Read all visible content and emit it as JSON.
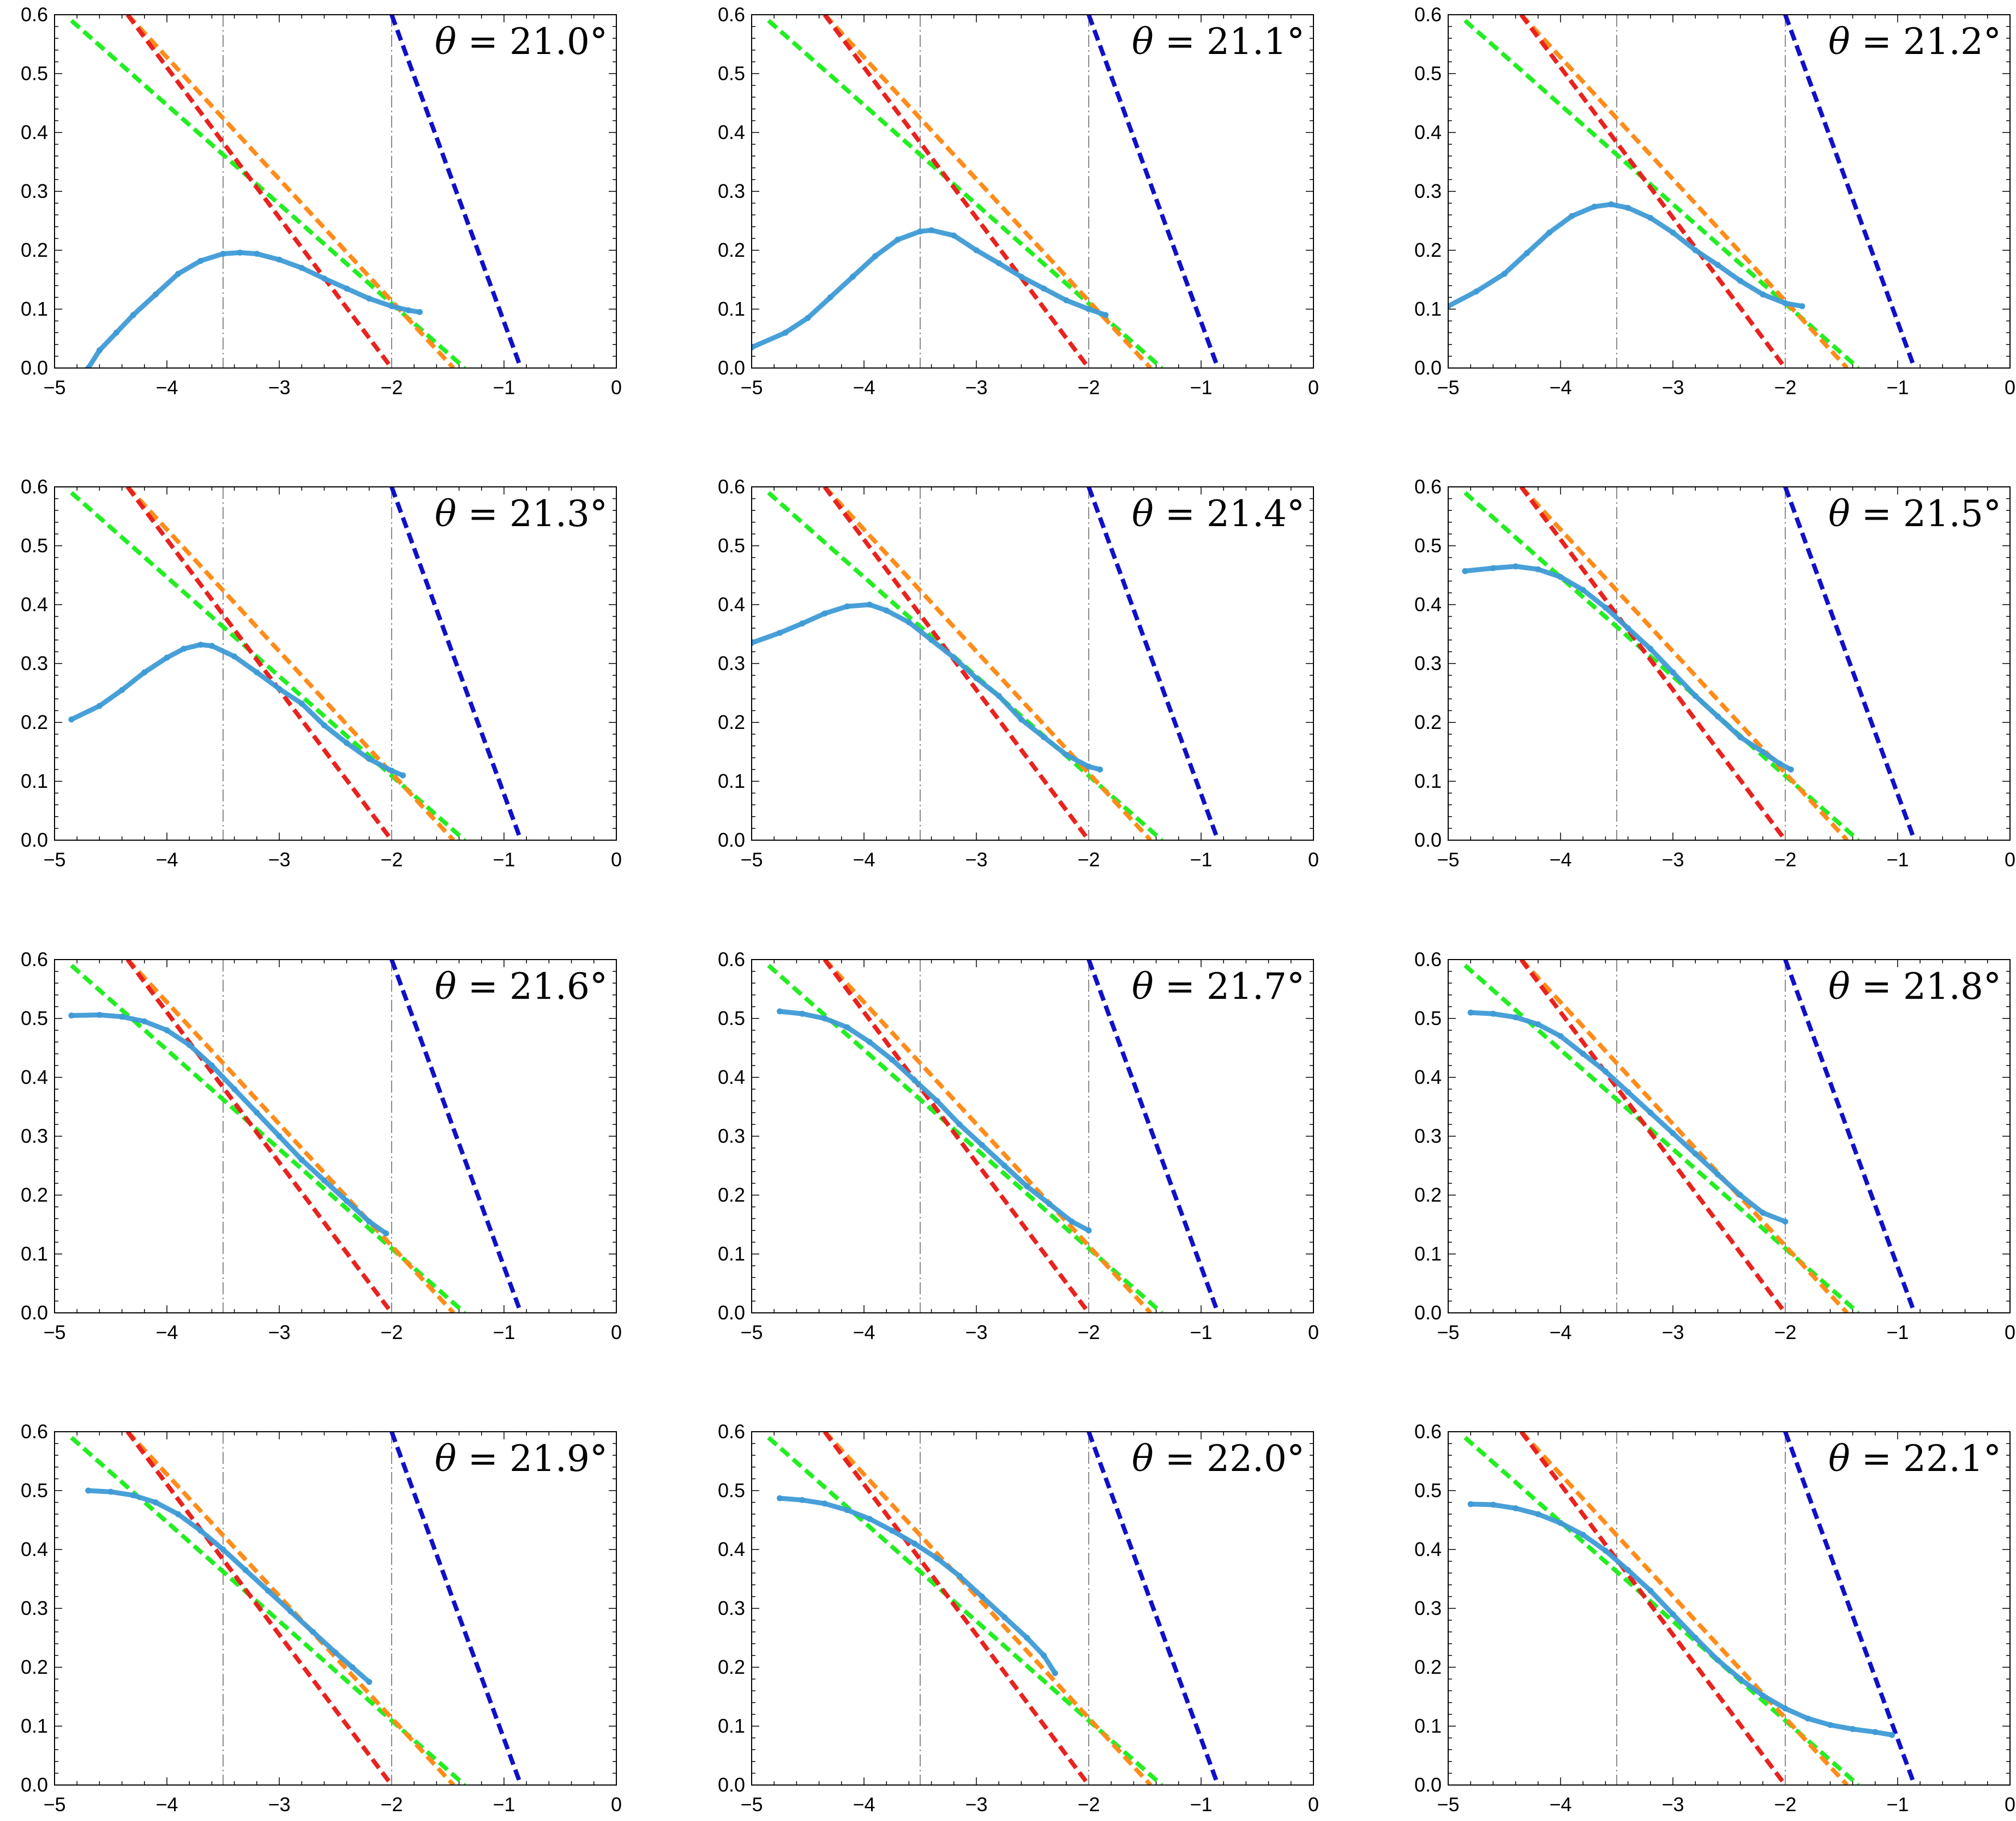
{
  "chart_data": {
    "type": "scatter",
    "layout": "4x3 grid of panels",
    "xlim": [
      -5,
      0
    ],
    "ylim": [
      0,
      0.6
    ],
    "x_ticks": [
      -5,
      -4,
      -3,
      -2,
      -1,
      0
    ],
    "y_ticks": [
      0.0,
      0.1,
      0.2,
      0.3,
      0.4,
      0.5,
      0.6
    ],
    "x_tick_labels": [
      "−5",
      "−4",
      "−3",
      "−2",
      "−1",
      "0"
    ],
    "y_tick_labels": [
      "0.0",
      "0.1",
      "0.2",
      "0.3",
      "0.4",
      "0.5",
      "0.6"
    ],
    "vertical_reference_lines": [
      -3.5,
      -2.0
    ],
    "reference_lines": [
      {
        "name": "green",
        "color": "#22ee22",
        "style": "dashed",
        "points": [
          [
            -4.85,
            0.59
          ],
          [
            -1.35,
            0.0
          ]
        ]
      },
      {
        "name": "orange",
        "color": "#ff8c1a",
        "style": "dashed",
        "points": [
          [
            -4.35,
            0.6
          ],
          [
            -1.45,
            0.0
          ]
        ]
      },
      {
        "name": "red",
        "color": "#e8231f",
        "style": "dashed",
        "points": [
          [
            -4.35,
            0.6
          ],
          [
            -2.0,
            0.0
          ]
        ]
      },
      {
        "name": "blue",
        "color": "#1010c8",
        "style": "dashed",
        "points": [
          [
            -2.0,
            0.6
          ],
          [
            -0.85,
            0.0
          ]
        ]
      }
    ],
    "data_color": "#3f9bd6",
    "panels": [
      {
        "title_symbol": "θ",
        "title_value": "= 21.0°",
        "data": [
          [
            -4.7,
            0.0
          ],
          [
            -4.6,
            0.03
          ],
          [
            -4.45,
            0.06
          ],
          [
            -4.3,
            0.09
          ],
          [
            -4.1,
            0.125
          ],
          [
            -3.9,
            0.16
          ],
          [
            -3.7,
            0.182
          ],
          [
            -3.5,
            0.194
          ],
          [
            -3.35,
            0.196
          ],
          [
            -3.2,
            0.194
          ],
          [
            -3.0,
            0.184
          ],
          [
            -2.8,
            0.17
          ],
          [
            -2.6,
            0.152
          ],
          [
            -2.4,
            0.135
          ],
          [
            -2.2,
            0.118
          ],
          [
            -2.0,
            0.105
          ],
          [
            -1.85,
            0.098
          ],
          [
            -1.75,
            0.095
          ]
        ]
      },
      {
        "title_symbol": "θ",
        "title_value": "= 21.1°",
        "data": [
          [
            -5.0,
            0.035
          ],
          [
            -4.7,
            0.06
          ],
          [
            -4.5,
            0.085
          ],
          [
            -4.3,
            0.12
          ],
          [
            -4.1,
            0.155
          ],
          [
            -3.9,
            0.19
          ],
          [
            -3.7,
            0.218
          ],
          [
            -3.5,
            0.232
          ],
          [
            -3.4,
            0.234
          ],
          [
            -3.2,
            0.225
          ],
          [
            -3.0,
            0.2
          ],
          [
            -2.8,
            0.178
          ],
          [
            -2.6,
            0.155
          ],
          [
            -2.4,
            0.135
          ],
          [
            -2.2,
            0.115
          ],
          [
            -2.0,
            0.1
          ],
          [
            -1.85,
            0.09
          ]
        ]
      },
      {
        "title_symbol": "θ",
        "title_value": "= 21.2°",
        "data": [
          [
            -5.0,
            0.105
          ],
          [
            -4.75,
            0.13
          ],
          [
            -4.5,
            0.16
          ],
          [
            -4.3,
            0.195
          ],
          [
            -4.1,
            0.23
          ],
          [
            -3.9,
            0.258
          ],
          [
            -3.7,
            0.274
          ],
          [
            -3.55,
            0.278
          ],
          [
            -3.4,
            0.272
          ],
          [
            -3.2,
            0.255
          ],
          [
            -3.0,
            0.23
          ],
          [
            -2.8,
            0.2
          ],
          [
            -2.6,
            0.175
          ],
          [
            -2.4,
            0.148
          ],
          [
            -2.2,
            0.125
          ],
          [
            -2.0,
            0.11
          ],
          [
            -1.85,
            0.105
          ]
        ]
      },
      {
        "title_symbol": "θ",
        "title_value": "= 21.3°",
        "data": [
          [
            -4.85,
            0.205
          ],
          [
            -4.6,
            0.228
          ],
          [
            -4.4,
            0.255
          ],
          [
            -4.2,
            0.285
          ],
          [
            -4.0,
            0.31
          ],
          [
            -3.85,
            0.325
          ],
          [
            -3.7,
            0.332
          ],
          [
            -3.6,
            0.33
          ],
          [
            -3.4,
            0.312
          ],
          [
            -3.2,
            0.285
          ],
          [
            -3.0,
            0.257
          ],
          [
            -2.8,
            0.232
          ],
          [
            -2.6,
            0.195
          ],
          [
            -2.4,
            0.165
          ],
          [
            -2.2,
            0.138
          ],
          [
            -2.0,
            0.118
          ],
          [
            -1.9,
            0.11
          ]
        ]
      },
      {
        "title_symbol": "θ",
        "title_value": "= 21.4°",
        "data": [
          [
            -5.0,
            0.335
          ],
          [
            -4.75,
            0.352
          ],
          [
            -4.55,
            0.368
          ],
          [
            -4.35,
            0.385
          ],
          [
            -4.15,
            0.397
          ],
          [
            -3.95,
            0.4
          ],
          [
            -3.8,
            0.39
          ],
          [
            -3.6,
            0.37
          ],
          [
            -3.4,
            0.34
          ],
          [
            -3.2,
            0.31
          ],
          [
            -3.0,
            0.275
          ],
          [
            -2.8,
            0.245
          ],
          [
            -2.6,
            0.205
          ],
          [
            -2.4,
            0.175
          ],
          [
            -2.2,
            0.145
          ],
          [
            -2.0,
            0.125
          ],
          [
            -1.9,
            0.12
          ]
        ]
      },
      {
        "title_symbol": "θ",
        "title_value": "= 21.5°",
        "data": [
          [
            -4.85,
            0.457
          ],
          [
            -4.6,
            0.462
          ],
          [
            -4.4,
            0.465
          ],
          [
            -4.2,
            0.46
          ],
          [
            -4.0,
            0.447
          ],
          [
            -3.8,
            0.425
          ],
          [
            -3.6,
            0.395
          ],
          [
            -3.4,
            0.36
          ],
          [
            -3.2,
            0.325
          ],
          [
            -3.0,
            0.285
          ],
          [
            -2.8,
            0.245
          ],
          [
            -2.6,
            0.21
          ],
          [
            -2.4,
            0.175
          ],
          [
            -2.2,
            0.15
          ],
          [
            -2.05,
            0.13
          ],
          [
            -1.95,
            0.12
          ]
        ]
      },
      {
        "title_symbol": "θ",
        "title_value": "= 21.6°",
        "data": [
          [
            -4.85,
            0.505
          ],
          [
            -4.6,
            0.506
          ],
          [
            -4.4,
            0.503
          ],
          [
            -4.2,
            0.495
          ],
          [
            -4.0,
            0.48
          ],
          [
            -3.8,
            0.455
          ],
          [
            -3.6,
            0.42
          ],
          [
            -3.4,
            0.38
          ],
          [
            -3.2,
            0.34
          ],
          [
            -3.0,
            0.3
          ],
          [
            -2.8,
            0.26
          ],
          [
            -2.6,
            0.225
          ],
          [
            -2.4,
            0.19
          ],
          [
            -2.2,
            0.155
          ],
          [
            -2.05,
            0.135
          ]
        ]
      },
      {
        "title_symbol": "θ",
        "title_value": "= 21.7°",
        "data": [
          [
            -4.75,
            0.512
          ],
          [
            -4.55,
            0.508
          ],
          [
            -4.35,
            0.5
          ],
          [
            -4.15,
            0.485
          ],
          [
            -3.95,
            0.46
          ],
          [
            -3.75,
            0.43
          ],
          [
            -3.55,
            0.395
          ],
          [
            -3.35,
            0.36
          ],
          [
            -3.15,
            0.32
          ],
          [
            -2.95,
            0.285
          ],
          [
            -2.75,
            0.25
          ],
          [
            -2.55,
            0.215
          ],
          [
            -2.35,
            0.185
          ],
          [
            -2.15,
            0.155
          ],
          [
            -2.0,
            0.14
          ]
        ]
      },
      {
        "title_symbol": "θ",
        "title_value": "= 21.8°",
        "data": [
          [
            -4.8,
            0.51
          ],
          [
            -4.6,
            0.508
          ],
          [
            -4.4,
            0.502
          ],
          [
            -4.2,
            0.49
          ],
          [
            -4.0,
            0.47
          ],
          [
            -3.8,
            0.44
          ],
          [
            -3.6,
            0.41
          ],
          [
            -3.4,
            0.375
          ],
          [
            -3.2,
            0.34
          ],
          [
            -3.0,
            0.305
          ],
          [
            -2.8,
            0.27
          ],
          [
            -2.6,
            0.235
          ],
          [
            -2.4,
            0.2
          ],
          [
            -2.2,
            0.17
          ],
          [
            -2.0,
            0.155
          ]
        ]
      },
      {
        "title_symbol": "θ",
        "title_value": "= 21.9°",
        "data": [
          [
            -4.7,
            0.5
          ],
          [
            -4.5,
            0.498
          ],
          [
            -4.3,
            0.492
          ],
          [
            -4.1,
            0.48
          ],
          [
            -3.9,
            0.46
          ],
          [
            -3.7,
            0.432
          ],
          [
            -3.5,
            0.4
          ],
          [
            -3.3,
            0.365
          ],
          [
            -3.1,
            0.33
          ],
          [
            -2.9,
            0.295
          ],
          [
            -2.7,
            0.26
          ],
          [
            -2.5,
            0.225
          ],
          [
            -2.35,
            0.2
          ],
          [
            -2.2,
            0.175
          ]
        ]
      },
      {
        "title_symbol": "θ",
        "title_value": "= 22.0°",
        "data": [
          [
            -4.75,
            0.487
          ],
          [
            -4.55,
            0.484
          ],
          [
            -4.35,
            0.478
          ],
          [
            -4.15,
            0.467
          ],
          [
            -3.95,
            0.452
          ],
          [
            -3.75,
            0.432
          ],
          [
            -3.55,
            0.41
          ],
          [
            -3.35,
            0.385
          ],
          [
            -3.15,
            0.355
          ],
          [
            -2.95,
            0.32
          ],
          [
            -2.75,
            0.285
          ],
          [
            -2.55,
            0.25
          ],
          [
            -2.4,
            0.22
          ],
          [
            -2.3,
            0.19
          ]
        ]
      },
      {
        "title_symbol": "θ",
        "title_value": "= 22.1°",
        "data": [
          [
            -4.8,
            0.477
          ],
          [
            -4.6,
            0.476
          ],
          [
            -4.4,
            0.47
          ],
          [
            -4.2,
            0.46
          ],
          [
            -4.0,
            0.445
          ],
          [
            -3.8,
            0.425
          ],
          [
            -3.6,
            0.398
          ],
          [
            -3.4,
            0.365
          ],
          [
            -3.2,
            0.33
          ],
          [
            -3.0,
            0.29
          ],
          [
            -2.8,
            0.25
          ],
          [
            -2.6,
            0.212
          ],
          [
            -2.4,
            0.18
          ],
          [
            -2.2,
            0.152
          ],
          [
            -2.0,
            0.13
          ],
          [
            -1.8,
            0.113
          ],
          [
            -1.6,
            0.102
          ],
          [
            -1.4,
            0.095
          ],
          [
            -1.2,
            0.09
          ],
          [
            -1.05,
            0.085
          ]
        ]
      }
    ]
  }
}
